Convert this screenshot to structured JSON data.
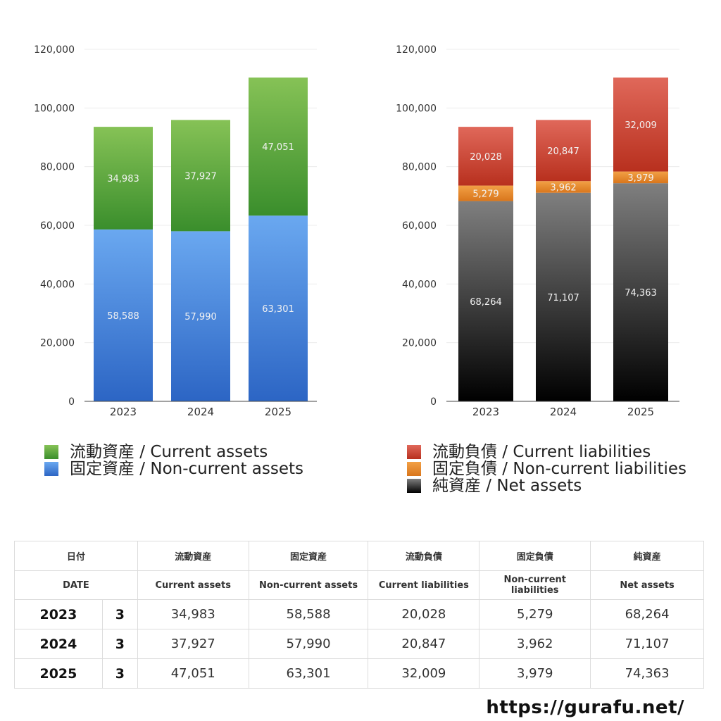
{
  "chart_data": [
    {
      "type": "bar",
      "stacked": true,
      "categories": [
        "2023",
        "2024",
        "2025"
      ],
      "ylim": [
        0,
        120000
      ],
      "yticks": [
        "0",
        "20,000",
        "40,000",
        "60,000",
        "80,000",
        "100,000",
        "120,000"
      ],
      "grid": true,
      "legend_position": "bottom",
      "series": [
        {
          "name": "固定資産 / Non-current assets",
          "values": [
            58588,
            57990,
            63301
          ],
          "labels": [
            "58,588",
            "57,990",
            "63,301"
          ],
          "color_top": "#6aa8f0",
          "color_bottom": "#2c65c4"
        },
        {
          "name": "流動資産 / Current assets",
          "values": [
            34983,
            37927,
            47051
          ],
          "labels": [
            "34,983",
            "37,927",
            "47,051"
          ],
          "color_top": "#86c256",
          "color_bottom": "#3a8e2c"
        }
      ],
      "legend": [
        {
          "label": "流動資産 / Current assets",
          "color": "#4fa33a"
        },
        {
          "label": "固定資産 / Non-current assets",
          "color": "#3f7fd6"
        }
      ]
    },
    {
      "type": "bar",
      "stacked": true,
      "categories": [
        "2023",
        "2024",
        "2025"
      ],
      "ylim": [
        0,
        120000
      ],
      "yticks": [
        "0",
        "20,000",
        "40,000",
        "60,000",
        "80,000",
        "100,000",
        "120,000"
      ],
      "grid": true,
      "legend_position": "bottom",
      "series": [
        {
          "name": "純資産 / Net assets",
          "values": [
            68264,
            71107,
            74363
          ],
          "labels": [
            "68,264",
            "71,107",
            "74,363"
          ],
          "color_top": "#7f7f7f",
          "color_bottom": "#000000"
        },
        {
          "name": "固定負債 / Non-current liabilities",
          "values": [
            5279,
            3962,
            3979
          ],
          "labels": [
            "5,279",
            "3,962",
            "3,979"
          ],
          "color_top": "#f2a045",
          "color_bottom": "#d9761c"
        },
        {
          "name": "流動負債 / Current liabilities",
          "values": [
            20028,
            20847,
            32009
          ],
          "labels": [
            "20,028",
            "20,847",
            "32,009"
          ],
          "color_top": "#e0685a",
          "color_bottom": "#b8301e"
        }
      ],
      "legend": [
        {
          "label": "流動負債 / Current liabilities",
          "color": "#d4473a"
        },
        {
          "label": "固定負債 / Non-current liabilities",
          "color": "#ec8a2c"
        },
        {
          "label": "純資産 / Net assets",
          "color": "#2a2a2a"
        }
      ]
    }
  ],
  "table": {
    "header_ja": [
      "日付",
      "流動資産",
      "固定資産",
      "流動負債",
      "固定負債",
      "純資産"
    ],
    "header_en": [
      "DATE",
      "Current assets",
      "Non-current assets",
      "Current liabilities",
      "Non-current liabilities",
      "Net assets"
    ],
    "rows": [
      {
        "year": "2023",
        "month": "3",
        "values": [
          "34,983",
          "58,588",
          "20,028",
          "5,279",
          "68,264"
        ]
      },
      {
        "year": "2024",
        "month": "3",
        "values": [
          "37,927",
          "57,990",
          "20,847",
          "3,962",
          "71,107"
        ]
      },
      {
        "year": "2025",
        "month": "3",
        "values": [
          "47,051",
          "63,301",
          "32,009",
          "3,979",
          "74,363"
        ]
      }
    ]
  },
  "footer": "https://gurafu.net/"
}
